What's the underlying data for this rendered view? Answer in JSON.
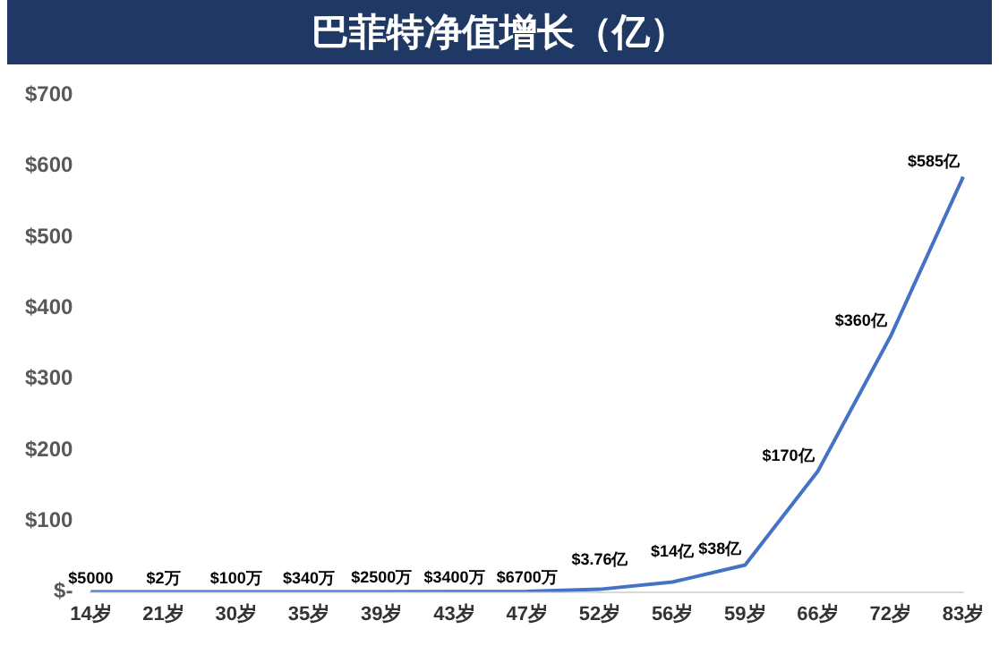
{
  "chart_data": {
    "type": "line",
    "title": "巴菲特净值增长（亿）",
    "categories": [
      "14岁",
      "21岁",
      "30岁",
      "35岁",
      "39岁",
      "43岁",
      "47岁",
      "52岁",
      "56岁",
      "59岁",
      "66岁",
      "72岁",
      "83岁"
    ],
    "series": [
      {
        "color": "#4472c4",
        "values": [
          5e-05,
          0.0002,
          0.01,
          0.034,
          0.25,
          0.34,
          0.67,
          3.76,
          14,
          38,
          170,
          360,
          585
        ]
      }
    ],
    "annotations": [
      {
        "text": "$5000",
        "x": "14岁",
        "y": 5e-05
      },
      {
        "text": "$2万",
        "x": "21岁",
        "y": 0.0002
      },
      {
        "text": "$100万",
        "x": "30岁",
        "y": 0.01
      },
      {
        "text": "$340万",
        "x": "35岁",
        "y": 0.034
      },
      {
        "text": "$2500万",
        "x": "39岁",
        "y": 0.25
      },
      {
        "text": "$3400万",
        "x": "43岁",
        "y": 0.34
      },
      {
        "text": "$6700万",
        "x": "47岁",
        "y": 0.67
      },
      {
        "text": "$3.76亿",
        "x": "52岁",
        "y": 3.76
      },
      {
        "text": "$14亿",
        "x": "56岁",
        "y": 14
      },
      {
        "text": "$38亿",
        "x": "59岁",
        "y": 38
      },
      {
        "text": "$170亿",
        "x": "66岁",
        "y": 170
      },
      {
        "text": "$360亿",
        "x": "72岁",
        "y": 360
      },
      {
        "text": "$585亿",
        "x": "83岁",
        "y": 585
      }
    ],
    "ylim": [
      0,
      700
    ],
    "yticks": [
      {
        "value": 0,
        "label": "$-"
      },
      {
        "value": 100,
        "label": "$100"
      },
      {
        "value": 200,
        "label": "$200"
      },
      {
        "value": 300,
        "label": "$300"
      },
      {
        "value": 400,
        "label": "$400"
      },
      {
        "value": 500,
        "label": "$500"
      },
      {
        "value": 600,
        "label": "$600"
      },
      {
        "value": 700,
        "label": "$700"
      }
    ],
    "grid": false,
    "legend": false,
    "marker": "none",
    "line_style": "solid"
  }
}
